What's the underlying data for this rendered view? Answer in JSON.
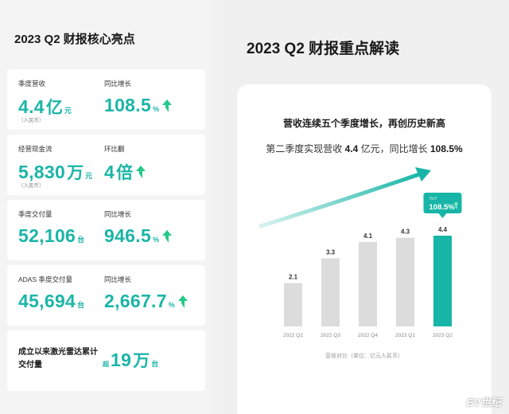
{
  "left": {
    "title": "2023 Q2 财报核心亮点",
    "cards": [
      {
        "a": {
          "label": "季度营收",
          "value": "4.4",
          "unit_big": "亿",
          "unit": "元",
          "note": "（人民币）"
        },
        "b": {
          "label": "同比增长",
          "value": "108.5",
          "unit": "%",
          "arrow": true
        }
      },
      {
        "a": {
          "label": "经营现金流",
          "value": "5,830",
          "unit_big": "万",
          "unit": "元",
          "note": "（人民币）"
        },
        "b": {
          "label": "环比翻",
          "value": "4",
          "unit_big": "倍",
          "arrow": true
        }
      },
      {
        "a": {
          "label": "季度交付量",
          "value": "52,106",
          "unit": "台"
        },
        "b": {
          "label": "同比增长",
          "value": "946.5",
          "unit": "%",
          "arrow": true
        }
      },
      {
        "a": {
          "label": "ADAS 季度交付量",
          "value": "45,694",
          "unit": "台"
        },
        "b": {
          "label": "同比增长",
          "value": "2,667.7",
          "unit": "%",
          "arrow": true
        }
      }
    ],
    "lidar": {
      "label": "成立以来激光雷达累计交付量",
      "prefix": "超",
      "value": "19",
      "unit_big": "万",
      "unit": "台"
    }
  },
  "right": {
    "title": "2023 Q2 财报重点解读",
    "headline": "营收连续五个季度增长，再创历史新高",
    "sub_prefix": "第二季度实现营收 ",
    "sub_rev": "4.4",
    "sub_mid": " 亿元，同比增长 ",
    "sub_growth": "108.5%",
    "caption": "营收对比（单位：亿元人民币）"
  },
  "chart_data": {
    "type": "bar",
    "categories": [
      "2022 Q2",
      "2022 Q3",
      "2022 Q4",
      "2023 Q1",
      "2023 Q2"
    ],
    "values": [
      2.1,
      3.3,
      4.1,
      4.3,
      4.4
    ],
    "value_labels": [
      "2.1",
      "3.3",
      "4.1",
      "4.3",
      "4.4"
    ],
    "highlight_index": 4,
    "callout": {
      "small": "YoY",
      "big": "108.5%"
    },
    "colors": {
      "bar": "#dcdcdc",
      "highlight": "#17b5a7",
      "arrow_start": "#d7f2ef",
      "arrow_end": "#17b5a7"
    }
  },
  "colors": {
    "accent": "#1bb5a8",
    "accent_arrow": "#25c98a"
  },
  "watermark": "EV世纪"
}
